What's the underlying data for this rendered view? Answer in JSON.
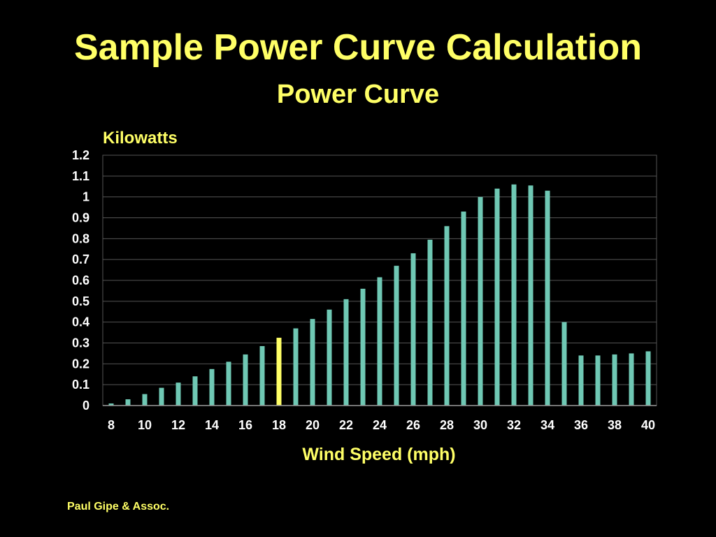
{
  "slide": {
    "title": "Sample Power Curve Calculation",
    "credit": "Paul Gipe & Assoc."
  },
  "colors": {
    "background": "#000000",
    "text_accent": "#ffff66",
    "bar": "#6fc8b4",
    "highlight_bar": "#ffff66",
    "gridline": "#555555"
  },
  "chart_data": {
    "type": "bar",
    "title": "Power Curve",
    "ylabel": "Kilowatts",
    "xlabel": "Wind Speed (mph)",
    "ylim": [
      0,
      1.2
    ],
    "yticks": [
      "0",
      "0.1",
      "0.2",
      "0.3",
      "0.4",
      "0.5",
      "0.6",
      "0.7",
      "0.8",
      "0.9",
      "1",
      "1.1",
      "1.2"
    ],
    "xticks_shown": [
      "8",
      "10",
      "12",
      "14",
      "16",
      "18",
      "20",
      "22",
      "24",
      "26",
      "28",
      "30",
      "32",
      "34",
      "36",
      "38",
      "40"
    ],
    "grid": true,
    "highlight_category": 18,
    "categories": [
      8,
      9,
      10,
      11,
      12,
      13,
      14,
      15,
      16,
      17,
      18,
      19,
      20,
      21,
      22,
      23,
      24,
      25,
      26,
      27,
      28,
      29,
      30,
      31,
      32,
      33,
      34,
      35,
      36,
      37,
      38,
      39,
      40
    ],
    "values": [
      0.01,
      0.03,
      0.055,
      0.085,
      0.11,
      0.14,
      0.175,
      0.21,
      0.245,
      0.285,
      0.325,
      0.37,
      0.415,
      0.46,
      0.51,
      0.56,
      0.615,
      0.67,
      0.73,
      0.795,
      0.86,
      0.93,
      1.0,
      1.04,
      1.06,
      1.055,
      1.03,
      0.4,
      0.24,
      0.24,
      0.245,
      0.25,
      0.26
    ]
  }
}
